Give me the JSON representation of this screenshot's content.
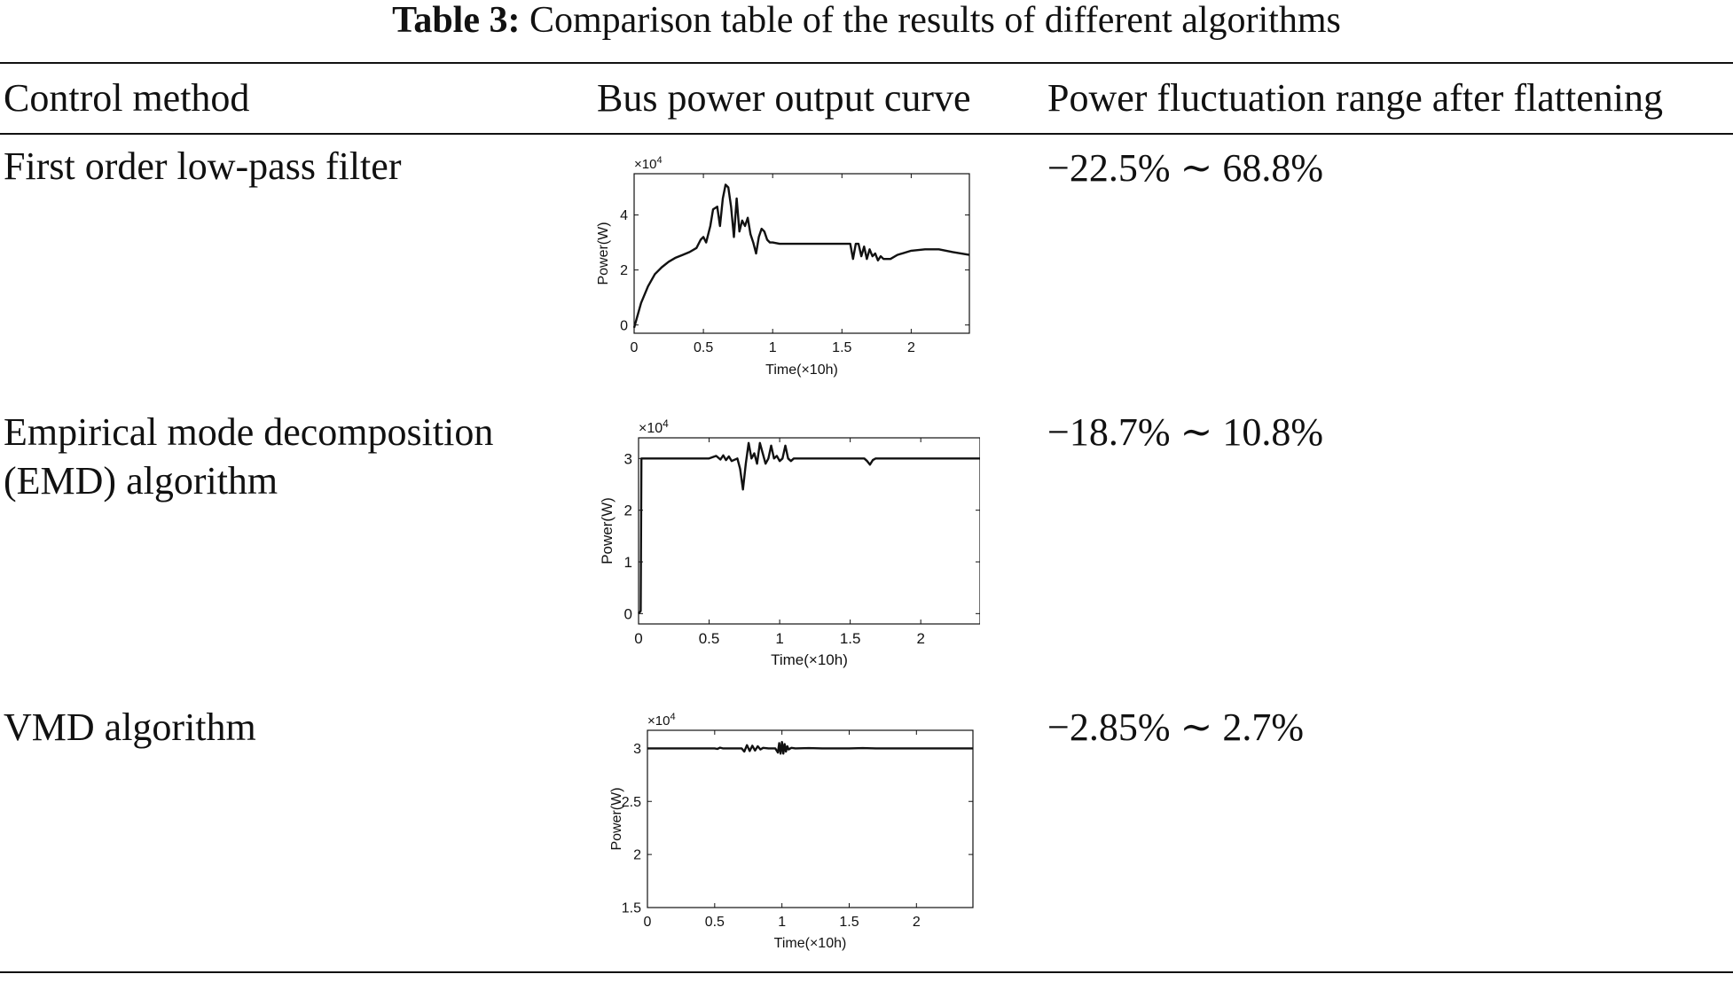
{
  "caption": {
    "label": "Table 3:",
    "text": "Comparison table of the results of different algorithms"
  },
  "table": {
    "headers": [
      "Control method",
      "Bus power output curve",
      "Power fluctuation range after flattening"
    ],
    "rows": [
      {
        "method_lines": [
          "First order low-pass filter"
        ],
        "range": "−22.5% ∼ 68.8%"
      },
      {
        "method_lines": [
          "Empirical mode decomposition",
          "(EMD) algorithm"
        ],
        "range": "−18.7% ∼ 10.8%"
      },
      {
        "method_lines": [
          "VMD algorithm"
        ],
        "range": "−2.85% ∼ 2.7%"
      }
    ]
  },
  "chart_data": [
    {
      "type": "line",
      "title": "",
      "xlabel": "Time(×10h)",
      "ylabel": "Power(W)",
      "multiplier_label": "×10",
      "multiplier_exp": "4",
      "xlim": [
        0,
        2.42
      ],
      "ylim": [
        -0.3,
        5.5
      ],
      "xticks": [
        0,
        0.5,
        1,
        1.5,
        2
      ],
      "xtick_labels": [
        "0",
        "0.5",
        "1",
        "1.5",
        "2"
      ],
      "yticks": [
        0,
        2,
        4
      ],
      "ytick_labels": [
        "0",
        "2",
        "4"
      ],
      "grid": false,
      "series": [
        {
          "values_unit": "×10^4 W",
          "x": [
            0,
            0.05,
            0.1,
            0.15,
            0.2,
            0.25,
            0.3,
            0.35,
            0.4,
            0.45,
            0.48,
            0.5,
            0.52,
            0.55,
            0.57,
            0.6,
            0.62,
            0.64,
            0.66,
            0.68,
            0.7,
            0.72,
            0.74,
            0.76,
            0.78,
            0.8,
            0.82,
            0.84,
            0.86,
            0.88,
            0.9,
            0.92,
            0.94,
            0.96,
            0.98,
            1.0,
            1.05,
            1.1,
            1.2,
            1.3,
            1.4,
            1.5,
            1.56,
            1.58,
            1.6,
            1.62,
            1.64,
            1.66,
            1.68,
            1.7,
            1.72,
            1.74,
            1.76,
            1.78,
            1.8,
            1.85,
            1.9,
            2.0,
            2.1,
            2.2,
            2.3,
            2.42
          ],
          "y": [
            -0.1,
            0.8,
            1.4,
            1.85,
            2.1,
            2.3,
            2.45,
            2.55,
            2.65,
            2.8,
            3.1,
            3.2,
            3.0,
            3.6,
            4.2,
            4.3,
            3.6,
            4.6,
            5.1,
            5.0,
            4.3,
            3.2,
            4.6,
            3.4,
            3.8,
            3.6,
            3.9,
            3.3,
            3.0,
            2.6,
            3.2,
            3.5,
            3.4,
            3.1,
            3.0,
            3.0,
            2.95,
            2.95,
            2.95,
            2.95,
            2.95,
            2.95,
            2.95,
            2.4,
            2.95,
            2.95,
            2.5,
            2.85,
            2.4,
            2.75,
            2.5,
            2.6,
            2.35,
            2.5,
            2.4,
            2.4,
            2.55,
            2.7,
            2.75,
            2.75,
            2.65,
            2.55
          ]
        }
      ]
    },
    {
      "type": "line",
      "title": "",
      "xlabel": "Time(×10h)",
      "ylabel": "Power(W)",
      "multiplier_label": "×10",
      "multiplier_exp": "4",
      "xlim": [
        0,
        2.42
      ],
      "ylim": [
        -0.2,
        3.4
      ],
      "xticks": [
        0,
        0.5,
        1,
        1.5,
        2
      ],
      "xtick_labels": [
        "0",
        "0.5",
        "1",
        "1.5",
        "2"
      ],
      "yticks": [
        0,
        1,
        2,
        3
      ],
      "ytick_labels": [
        "0",
        "1",
        "2",
        "3"
      ],
      "grid": false,
      "series": [
        {
          "values_unit": "×10^4 W",
          "x": [
            0,
            0.015,
            0.02,
            0.03,
            0.2,
            0.5,
            0.55,
            0.58,
            0.6,
            0.62,
            0.64,
            0.66,
            0.7,
            0.72,
            0.74,
            0.76,
            0.78,
            0.8,
            0.82,
            0.84,
            0.86,
            0.88,
            0.9,
            0.92,
            0.94,
            0.96,
            0.98,
            1.0,
            1.02,
            1.04,
            1.06,
            1.08,
            1.1,
            1.2,
            1.4,
            1.6,
            1.62,
            1.64,
            1.66,
            1.68,
            1.7,
            1.8,
            2.0,
            2.2,
            2.42
          ],
          "y": [
            0,
            0.05,
            3.0,
            3.0,
            3.0,
            3.0,
            3.05,
            2.98,
            3.06,
            2.97,
            3.04,
            2.95,
            3.0,
            2.8,
            2.4,
            2.9,
            3.3,
            3.0,
            3.1,
            2.9,
            3.3,
            3.1,
            2.9,
            3.0,
            3.25,
            3.0,
            3.05,
            2.95,
            3.0,
            3.25,
            3.0,
            2.95,
            3.0,
            3.0,
            3.0,
            3.0,
            2.95,
            2.88,
            2.97,
            3.0,
            3.0,
            3.0,
            3.0,
            3.0,
            3.0
          ]
        }
      ]
    },
    {
      "type": "line",
      "title": "",
      "xlabel": "Time(×10h)",
      "ylabel": "Power(W)",
      "multiplier_label": "×10",
      "multiplier_exp": "4",
      "xlim": [
        0,
        2.42
      ],
      "ylim": [
        1.5,
        3.17
      ],
      "xticks": [
        0,
        0.5,
        1,
        1.5,
        2
      ],
      "xtick_labels": [
        "0",
        "0.5",
        "1",
        "1.5",
        "2"
      ],
      "yticks": [
        1.5,
        2,
        2.5,
        3
      ],
      "ytick_labels": [
        "1.5",
        "2",
        "2.5",
        "3"
      ],
      "grid": false,
      "series": [
        {
          "values_unit": "×10^4 W",
          "x": [
            0,
            0.5,
            0.52,
            0.54,
            0.56,
            0.6,
            0.7,
            0.72,
            0.74,
            0.76,
            0.78,
            0.8,
            0.82,
            0.84,
            0.86,
            0.9,
            0.95,
            0.97,
            0.98,
            0.99,
            1.0,
            1.01,
            1.02,
            1.03,
            1.04,
            1.05,
            1.07,
            1.1,
            1.2,
            1.3,
            1.4,
            1.5,
            1.6,
            1.7,
            1.8,
            2.0,
            2.42
          ],
          "y": [
            3.0,
            3.0,
            2.995,
            3.006,
            3.0,
            3.0,
            3.0,
            2.97,
            3.03,
            2.975,
            3.025,
            2.98,
            3.02,
            2.99,
            3.005,
            3.0,
            3.0,
            2.96,
            3.05,
            2.95,
            3.06,
            2.95,
            3.04,
            2.97,
            3.02,
            2.99,
            3.005,
            3.0,
            3.002,
            3.0,
            3.0,
            3.0,
            3.002,
            3.0,
            3.0,
            3.0,
            3.0
          ]
        }
      ]
    }
  ]
}
